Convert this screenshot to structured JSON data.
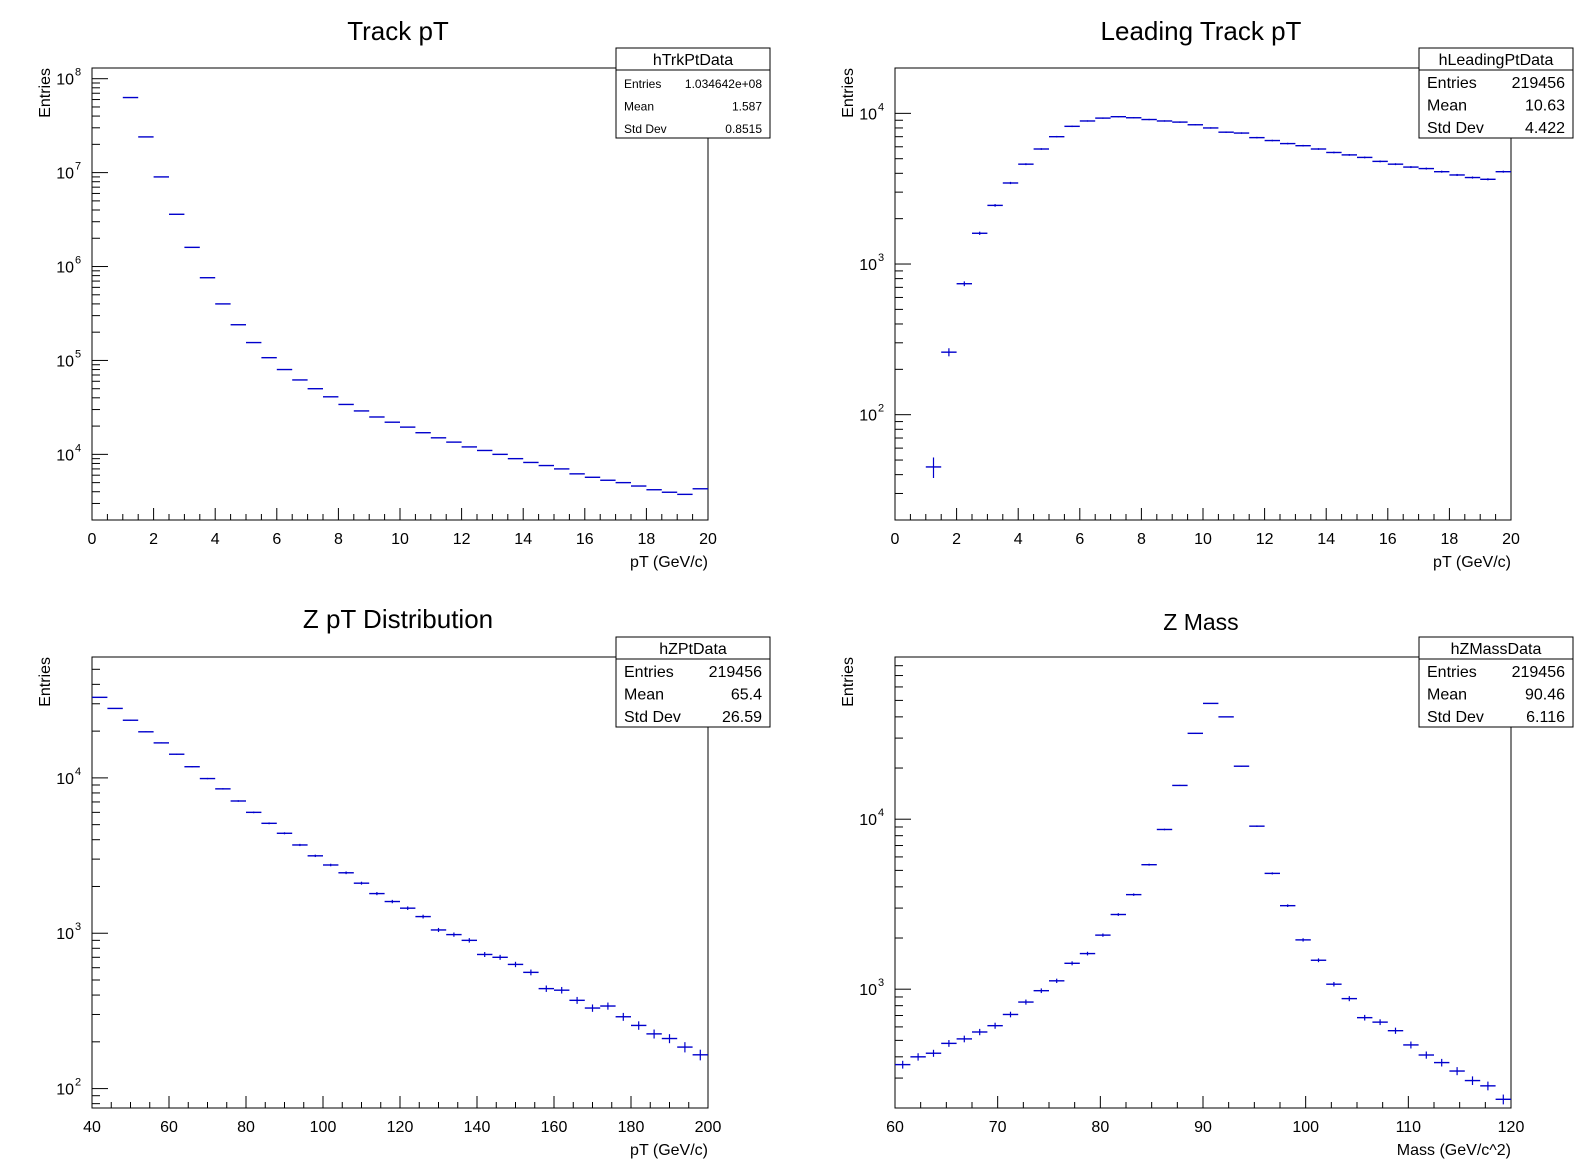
{
  "chart_data": [
    {
      "type": "histogram",
      "title": "Track pT",
      "xlabel": "pT (GeV/c)",
      "ylabel": "Entries",
      "xlim": [
        0,
        20
      ],
      "ylim": [
        2000,
        130000000
      ],
      "yscale": "log",
      "x_ticks": [
        "0",
        "2",
        "4",
        "6",
        "8",
        "10",
        "12",
        "14",
        "16",
        "18",
        "20"
      ],
      "y_ticks": [
        {
          "base": "10",
          "exp": "4"
        },
        {
          "base": "10",
          "exp": "5"
        },
        {
          "base": "10",
          "exp": "6"
        },
        {
          "base": "10",
          "exp": "7"
        },
        {
          "base": "10",
          "exp": "8"
        }
      ],
      "bin_width": 0.5,
      "x": [
        1.25,
        1.75,
        2.25,
        2.75,
        3.25,
        3.75,
        4.25,
        4.75,
        5.25,
        5.75,
        6.25,
        6.75,
        7.25,
        7.75,
        8.25,
        8.75,
        9.25,
        9.75,
        10.25,
        10.75,
        11.25,
        11.75,
        12.25,
        12.75,
        13.25,
        13.75,
        14.25,
        14.75,
        15.25,
        15.75,
        16.25,
        16.75,
        17.25,
        17.75,
        18.25,
        18.75,
        19.25,
        19.75
      ],
      "values": [
        63000000,
        24000000,
        9000000,
        3600000,
        1600000,
        760000,
        400000,
        240000,
        155000,
        107000,
        80000,
        62000,
        50000,
        41000,
        34000,
        29000,
        25000,
        22000,
        19500,
        17000,
        15000,
        13500,
        12000,
        11000,
        10000,
        9000,
        8200,
        7600,
        7000,
        6200,
        5700,
        5300,
        5000,
        4600,
        4200,
        3950,
        3750,
        4300
      ],
      "errors": [
        0,
        0,
        0,
        0,
        0,
        0,
        0,
        0,
        0,
        0,
        0,
        0,
        0,
        0,
        0,
        0,
        0,
        0,
        0,
        0,
        0,
        0,
        0,
        0,
        0,
        0,
        0,
        0,
        0,
        0,
        0,
        0,
        0,
        0,
        0,
        0,
        0,
        0
      ],
      "stats": {
        "name": "hTrkPtData",
        "rows": [
          [
            "Entries",
            "1.034642e+08"
          ],
          [
            "Mean",
            "1.587"
          ],
          [
            "Std Dev",
            "0.8515"
          ]
        ]
      }
    },
    {
      "type": "histogram",
      "title": "Leading Track pT",
      "xlabel": "pT (GeV/c)",
      "ylabel": "Entries",
      "xlim": [
        0,
        20
      ],
      "ylim": [
        20,
        20000
      ],
      "yscale": "log",
      "x_ticks": [
        "0",
        "2",
        "4",
        "6",
        "8",
        "10",
        "12",
        "14",
        "16",
        "18",
        "20"
      ],
      "y_ticks": [
        {
          "base": "10",
          "exp": "2"
        },
        {
          "base": "10",
          "exp": "3"
        },
        {
          "base": "10",
          "exp": "4"
        }
      ],
      "bin_width": 0.5,
      "x": [
        1.25,
        1.75,
        2.25,
        2.75,
        3.25,
        3.75,
        4.25,
        4.75,
        5.25,
        5.75,
        6.25,
        6.75,
        7.25,
        7.75,
        8.25,
        8.75,
        9.25,
        9.75,
        10.25,
        10.75,
        11.25,
        11.75,
        12.25,
        12.75,
        13.25,
        13.75,
        14.25,
        14.75,
        15.25,
        15.75,
        16.25,
        16.75,
        17.25,
        17.75,
        18.25,
        18.75,
        19.25,
        19.75
      ],
      "values": [
        45,
        260,
        740,
        1600,
        2450,
        3450,
        4600,
        5800,
        7000,
        8200,
        8900,
        9300,
        9500,
        9350,
        9100,
        8900,
        8750,
        8400,
        8000,
        7500,
        7400,
        6900,
        6600,
        6300,
        6100,
        5800,
        5500,
        5300,
        5100,
        4800,
        4600,
        4400,
        4300,
        4100,
        3900,
        3750,
        3650,
        4100
      ],
      "errors": [
        7,
        16,
        27,
        40,
        50,
        59,
        68,
        76,
        84,
        91,
        94,
        96,
        97,
        97,
        95,
        94,
        94,
        92,
        89,
        87,
        86,
        83,
        81,
        79,
        78,
        76,
        74,
        73,
        71,
        69,
        68,
        66,
        66,
        64,
        62,
        61,
        60,
        64
      ],
      "stats": {
        "name": "hLeadingPtData",
        "rows": [
          [
            "Entries",
            "219456"
          ],
          [
            "Mean",
            "10.63"
          ],
          [
            "Std Dev",
            "4.422"
          ]
        ]
      }
    },
    {
      "type": "histogram",
      "title": "Z pT Distribution",
      "xlabel": "pT (GeV/c)",
      "ylabel": "Entries",
      "xlim": [
        40,
        200
      ],
      "ylim": [
        75,
        60000
      ],
      "yscale": "log",
      "x_ticks": [
        "40",
        "60",
        "80",
        "100",
        "120",
        "140",
        "160",
        "180",
        "200"
      ],
      "y_ticks": [
        {
          "base": "10",
          "exp": "2"
        },
        {
          "base": "10",
          "exp": "3"
        },
        {
          "base": "10",
          "exp": "4"
        }
      ],
      "bin_width": 4,
      "x": [
        42,
        46,
        50,
        54,
        58,
        62,
        66,
        70,
        74,
        78,
        82,
        86,
        90,
        94,
        98,
        102,
        106,
        110,
        114,
        118,
        122,
        126,
        130,
        134,
        138,
        142,
        146,
        150,
        154,
        158,
        162,
        166,
        170,
        174,
        178,
        182,
        186,
        190,
        194,
        198
      ],
      "values": [
        33000,
        28000,
        23500,
        19800,
        16800,
        14200,
        11800,
        9900,
        8500,
        7100,
        6000,
        5100,
        4400,
        3700,
        3150,
        2750,
        2450,
        2100,
        1800,
        1600,
        1450,
        1280,
        1050,
        980,
        900,
        730,
        700,
        630,
        560,
        440,
        430,
        370,
        330,
        340,
        290,
        255,
        225,
        210,
        185,
        165
      ],
      "errors": [
        182,
        167,
        153,
        141,
        130,
        119,
        109,
        99,
        92,
        84,
        77,
        71,
        66,
        61,
        56,
        52,
        49,
        46,
        42,
        40,
        38,
        36,
        32,
        31,
        30,
        27,
        26,
        25,
        24,
        21,
        21,
        19,
        18,
        18,
        17,
        16,
        15,
        14,
        14,
        13
      ],
      "stats": {
        "name": "hZPtData",
        "rows": [
          [
            "Entries",
            "219456"
          ],
          [
            "Mean",
            "65.4"
          ],
          [
            "Std Dev",
            "26.59"
          ]
        ]
      }
    },
    {
      "type": "histogram",
      "title": "Z Mass",
      "xlabel": "Mass (GeV/c^2)",
      "ylabel": "Entries",
      "xlim": [
        60,
        120
      ],
      "ylim": [
        200,
        90000
      ],
      "yscale": "log",
      "x_ticks": [
        "60",
        "70",
        "80",
        "90",
        "100",
        "110",
        "120"
      ],
      "y_ticks": [
        {
          "base": "10",
          "exp": "3"
        },
        {
          "base": "10",
          "exp": "4"
        }
      ],
      "bin_width": 1.5,
      "x": [
        60.75,
        62.25,
        63.75,
        65.25,
        66.75,
        68.25,
        69.75,
        71.25,
        72.75,
        74.25,
        75.75,
        77.25,
        78.75,
        80.25,
        81.75,
        83.25,
        84.75,
        86.25,
        87.75,
        89.25,
        90.75,
        92.25,
        93.75,
        95.25,
        96.75,
        98.25,
        99.75,
        101.25,
        102.75,
        104.25,
        105.75,
        107.25,
        108.75,
        110.25,
        111.75,
        113.25,
        114.75,
        116.25,
        117.75,
        119.25
      ],
      "values": [
        360,
        400,
        420,
        480,
        510,
        560,
        610,
        710,
        840,
        980,
        1120,
        1420,
        1620,
        2080,
        2750,
        3600,
        5400,
        8700,
        15800,
        32000,
        48000,
        40000,
        20500,
        9100,
        4800,
        3100,
        1950,
        1480,
        1070,
        880,
        680,
        640,
        570,
        470,
        410,
        370,
        330,
        290,
        270,
        225
      ],
      "errors": [
        19,
        20,
        20,
        22,
        23,
        24,
        25,
        27,
        29,
        31,
        33,
        38,
        40,
        46,
        52,
        60,
        73,
        93,
        126,
        179,
        219,
        200,
        143,
        95,
        69,
        56,
        44,
        38,
        33,
        30,
        26,
        25,
        24,
        22,
        20,
        19,
        18,
        17,
        16,
        15
      ],
      "stats": {
        "name": "hZMassData",
        "rows": [
          [
            "Entries",
            "219456"
          ],
          [
            "Mean",
            "90.46"
          ],
          [
            "Std Dev",
            "6.116"
          ]
        ]
      }
    }
  ]
}
